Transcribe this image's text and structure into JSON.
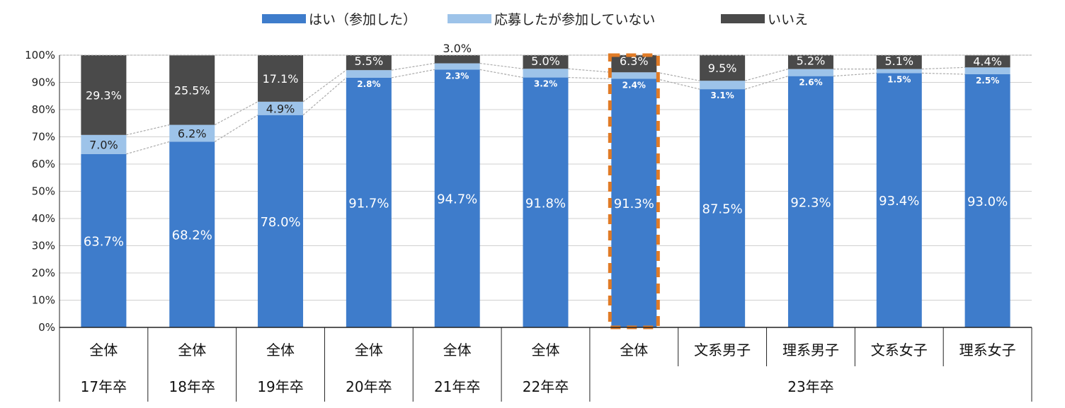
{
  "chart_data": {
    "type": "bar",
    "stacked": true,
    "ylim": [
      0,
      100
    ],
    "yticks": [
      "0%",
      "10%",
      "20%",
      "30%",
      "40%",
      "50%",
      "60%",
      "70%",
      "80%",
      "90%",
      "100%"
    ],
    "categories": [
      "全体",
      "全体",
      "全体",
      "全体",
      "全体",
      "全体",
      "全体",
      "文系男子",
      "理系男子",
      "文系女子",
      "理系女子"
    ],
    "groups": [
      "17年卒",
      "18年卒",
      "19年卒",
      "20年卒",
      "21年卒",
      "22年卒",
      "23年卒"
    ],
    "group_spans": [
      1,
      1,
      1,
      1,
      1,
      1,
      5
    ],
    "highlight_index": 6,
    "series": [
      {
        "name": "はい（参加した）",
        "color": "#3e7ccb",
        "values": [
          63.7,
          68.2,
          78.0,
          91.7,
          94.7,
          91.8,
          91.3,
          87.5,
          92.3,
          93.4,
          93.0
        ],
        "labels": [
          "63.7%",
          "68.2%",
          "78.0%",
          "91.7%",
          "94.7%",
          "91.8%",
          "91.3%",
          "87.5%",
          "92.3%",
          "93.4%",
          "93.0%"
        ]
      },
      {
        "name": "応募したが参加していない",
        "color": "#9dc3e9",
        "values": [
          7.0,
          6.2,
          4.9,
          2.8,
          2.3,
          3.2,
          2.4,
          3.1,
          2.6,
          1.5,
          2.5
        ],
        "labels": [
          "7.0%",
          "6.2%",
          "4.9%",
          "2.8%",
          "2.3%",
          "3.2%",
          "2.4%",
          "3.1%",
          "2.6%",
          "1.5%",
          "2.5%"
        ]
      },
      {
        "name": "いいえ",
        "color": "#4a4a4a",
        "values": [
          29.3,
          25.5,
          17.1,
          5.5,
          3.0,
          5.0,
          6.3,
          9.5,
          5.2,
          5.1,
          4.4
        ],
        "labels": [
          "29.3%",
          "25.5%",
          "17.1%",
          "5.5%",
          "3.0%",
          "5.0%",
          "6.3%",
          "9.5%",
          "5.2%",
          "5.1%",
          "4.4%"
        ]
      }
    ],
    "legend_position": "top",
    "grid": true
  },
  "colors": {
    "highlight": "#e07b26",
    "grid": "#d0d0d0",
    "connector": "#aaaaaa"
  }
}
